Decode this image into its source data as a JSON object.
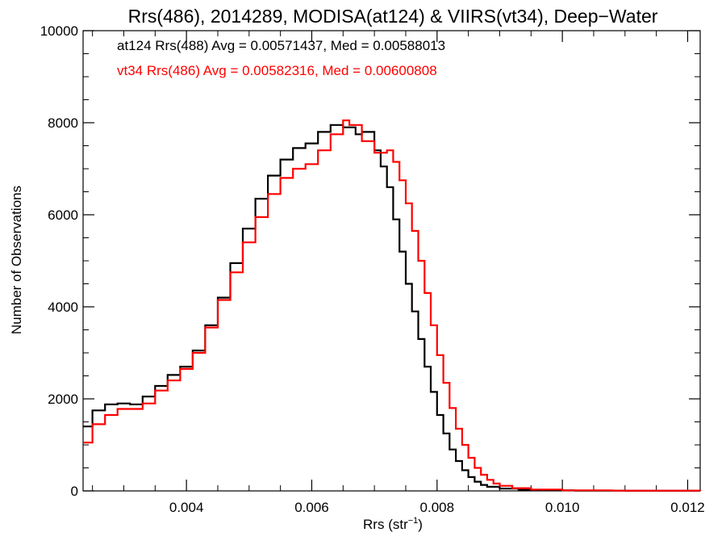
{
  "chart_data": {
    "type": "line",
    "title": "Rrs(486), 2014289, MODISA(at124) & VIIRS(vt34), Deep−Water",
    "xlabel_main": "Rrs (str",
    "xlabel_sup": "−1",
    "xlabel_close": ")",
    "ylabel": "Number of Observations",
    "xlim": [
      0.00235,
      0.0122
    ],
    "ylim": [
      0,
      10000
    ],
    "x_ticks": [
      0.004,
      0.006,
      0.008,
      0.01,
      0.012
    ],
    "x_tick_labels": [
      "0.004",
      "0.006",
      "0.008",
      "0.010",
      "0.012"
    ],
    "y_ticks": [
      0,
      2000,
      4000,
      6000,
      8000,
      10000
    ],
    "y_tick_labels": [
      "0",
      "2000",
      "4000",
      "6000",
      "8000",
      "10000"
    ],
    "grid": false,
    "series": [
      {
        "name": "at124",
        "color": "#000000",
        "legend_text": "at124 Rrs(488) Avg = 0.00571437, Med = 0.00588013",
        "points": [
          [
            0.00235,
            1400
          ],
          [
            0.0025,
            1750
          ],
          [
            0.0027,
            1880
          ],
          [
            0.0029,
            1900
          ],
          [
            0.0031,
            1880
          ],
          [
            0.0033,
            2050
          ],
          [
            0.0035,
            2280
          ],
          [
            0.0037,
            2520
          ],
          [
            0.0039,
            2700
          ],
          [
            0.0041,
            3050
          ],
          [
            0.0043,
            3600
          ],
          [
            0.0045,
            4200
          ],
          [
            0.0047,
            4950
          ],
          [
            0.0049,
            5700
          ],
          [
            0.0051,
            6350
          ],
          [
            0.0053,
            6850
          ],
          [
            0.0055,
            7200
          ],
          [
            0.0057,
            7450
          ],
          [
            0.0059,
            7550
          ],
          [
            0.0061,
            7800
          ],
          [
            0.0063,
            7950
          ],
          [
            0.0065,
            7900
          ],
          [
            0.0067,
            7750
          ],
          [
            0.0068,
            7800
          ],
          [
            0.007,
            7400
          ],
          [
            0.0071,
            7050
          ],
          [
            0.0072,
            6600
          ],
          [
            0.0073,
            5900
          ],
          [
            0.0074,
            5200
          ],
          [
            0.0075,
            4500
          ],
          [
            0.0076,
            3900
          ],
          [
            0.0077,
            3300
          ],
          [
            0.0078,
            2700
          ],
          [
            0.0079,
            2150
          ],
          [
            0.008,
            1650
          ],
          [
            0.0081,
            1250
          ],
          [
            0.0082,
            900
          ],
          [
            0.0083,
            650
          ],
          [
            0.0084,
            450
          ],
          [
            0.0085,
            300
          ],
          [
            0.0086,
            200
          ],
          [
            0.0087,
            130
          ],
          [
            0.0088,
            90
          ],
          [
            0.009,
            50
          ],
          [
            0.0093,
            25
          ],
          [
            0.0097,
            12
          ],
          [
            0.0102,
            6
          ],
          [
            0.011,
            3
          ],
          [
            0.0122,
            2
          ]
        ]
      },
      {
        "name": "vt34",
        "color": "#ff0000",
        "legend_text": "vt34 Rrs(486) Avg = 0.00582316, Med = 0.00600808",
        "points": [
          [
            0.00235,
            1050
          ],
          [
            0.0025,
            1450
          ],
          [
            0.0027,
            1650
          ],
          [
            0.0029,
            1780
          ],
          [
            0.0031,
            1780
          ],
          [
            0.0033,
            1900
          ],
          [
            0.0035,
            2180
          ],
          [
            0.0037,
            2400
          ],
          [
            0.0039,
            2650
          ],
          [
            0.0041,
            3000
          ],
          [
            0.0043,
            3550
          ],
          [
            0.0045,
            4150
          ],
          [
            0.0047,
            4750
          ],
          [
            0.0049,
            5400
          ],
          [
            0.0051,
            5950
          ],
          [
            0.0053,
            6450
          ],
          [
            0.0055,
            6800
          ],
          [
            0.0057,
            7000
          ],
          [
            0.0059,
            7100
          ],
          [
            0.0061,
            7400
          ],
          [
            0.0063,
            7750
          ],
          [
            0.0065,
            8050
          ],
          [
            0.0066,
            7950
          ],
          [
            0.0068,
            7600
          ],
          [
            0.007,
            7350
          ],
          [
            0.0072,
            7400
          ],
          [
            0.0073,
            7150
          ],
          [
            0.0074,
            6750
          ],
          [
            0.0075,
            6250
          ],
          [
            0.0076,
            5650
          ],
          [
            0.0077,
            5000
          ],
          [
            0.0078,
            4300
          ],
          [
            0.0079,
            3600
          ],
          [
            0.008,
            2950
          ],
          [
            0.0081,
            2350
          ],
          [
            0.0082,
            1800
          ],
          [
            0.0083,
            1350
          ],
          [
            0.0084,
            1000
          ],
          [
            0.0085,
            720
          ],
          [
            0.0086,
            500
          ],
          [
            0.0087,
            350
          ],
          [
            0.0088,
            240
          ],
          [
            0.0089,
            160
          ],
          [
            0.009,
            110
          ],
          [
            0.0092,
            60
          ],
          [
            0.0095,
            30
          ],
          [
            0.01,
            12
          ],
          [
            0.0108,
            5
          ],
          [
            0.0122,
            2
          ]
        ]
      }
    ]
  }
}
